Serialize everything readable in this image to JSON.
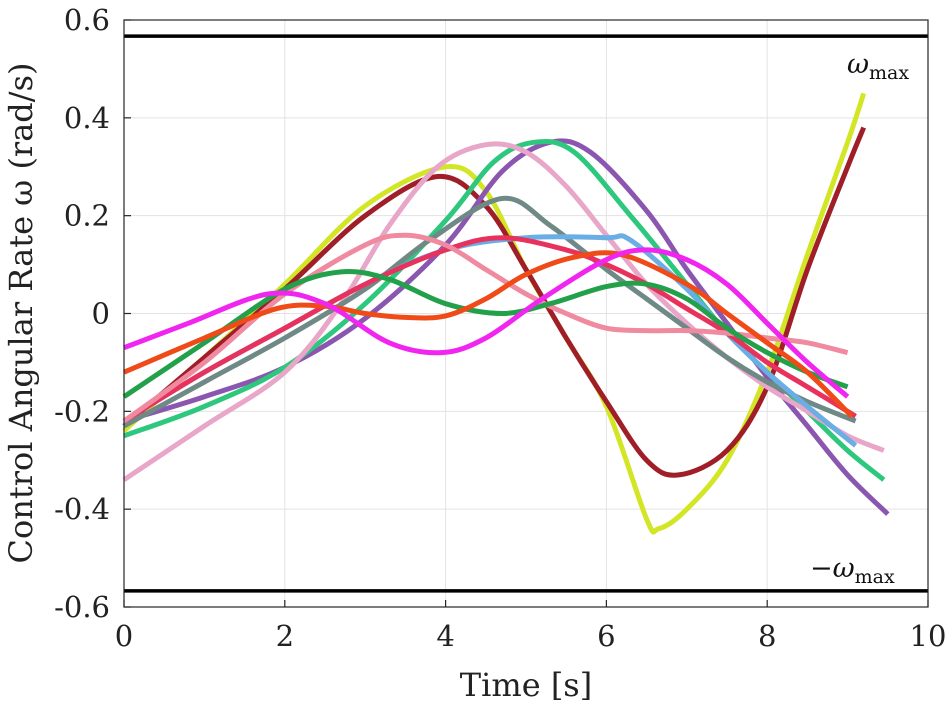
{
  "chart_data": {
    "type": "line",
    "title": "",
    "xlabel": "Time [s]",
    "ylabel": "Control Angular Rate ω (rad/s)",
    "xlim": [
      0,
      10
    ],
    "ylim": [
      -0.6,
      0.6
    ],
    "grid": true,
    "xticks": [
      0,
      2,
      4,
      6,
      8,
      10
    ],
    "xtick_labels": [
      "0",
      "2",
      "4",
      "6",
      "8",
      "10"
    ],
    "yticks": [
      0.6,
      0.4,
      0.2,
      0,
      -0.2,
      -0.4,
      -0.6
    ],
    "ytick_labels": [
      "0.6",
      "0.4",
      "0.2",
      "0",
      "-0.2",
      "-0.4",
      "-0.6"
    ],
    "bounds": [
      {
        "name": "omega_max",
        "value": 0.567,
        "label_main": "ω",
        "label_sub": "max"
      },
      {
        "name": "neg_omega_max",
        "value": -0.567,
        "label_main": "−ω",
        "label_sub": "max"
      }
    ],
    "series": [
      {
        "name": "yellow-green",
        "color": "#d2e626",
        "points": [
          [
            0,
            -0.24
          ],
          [
            1,
            -0.09
          ],
          [
            2,
            0.06
          ],
          [
            3,
            0.22
          ],
          [
            4,
            0.3
          ],
          [
            4.5,
            0.25
          ],
          [
            5,
            0.09
          ],
          [
            5.5,
            -0.05
          ],
          [
            6,
            -0.19
          ],
          [
            6.5,
            -0.42
          ],
          [
            6.65,
            -0.44
          ],
          [
            7,
            -0.4
          ],
          [
            7.5,
            -0.3
          ],
          [
            8,
            -0.12
          ],
          [
            8.5,
            0.12
          ],
          [
            9,
            0.35
          ],
          [
            9.2,
            0.45
          ]
        ]
      },
      {
        "name": "dark-red",
        "color": "#a01e28",
        "points": [
          [
            0,
            -0.23
          ],
          [
            1,
            -0.09
          ],
          [
            2,
            0.05
          ],
          [
            3,
            0.2
          ],
          [
            3.9,
            0.28
          ],
          [
            4.5,
            0.22
          ],
          [
            5,
            0.09
          ],
          [
            5.5,
            -0.05
          ],
          [
            6,
            -0.18
          ],
          [
            6.5,
            -0.3
          ],
          [
            6.9,
            -0.33
          ],
          [
            7.5,
            -0.28
          ],
          [
            8,
            -0.15
          ],
          [
            8.5,
            0.09
          ],
          [
            9,
            0.3
          ],
          [
            9.2,
            0.38
          ]
        ]
      },
      {
        "name": "purple",
        "color": "#8a56b0",
        "points": [
          [
            0,
            -0.22
          ],
          [
            1,
            -0.17
          ],
          [
            2,
            -0.11
          ],
          [
            3,
            -0.01
          ],
          [
            4,
            0.14
          ],
          [
            4.7,
            0.29
          ],
          [
            5.3,
            0.35
          ],
          [
            5.8,
            0.33
          ],
          [
            6.5,
            0.21
          ],
          [
            7,
            0.09
          ],
          [
            7.5,
            -0.02
          ],
          [
            8,
            -0.13
          ],
          [
            8.5,
            -0.23
          ],
          [
            9,
            -0.33
          ],
          [
            9.5,
            -0.41
          ]
        ]
      },
      {
        "name": "green",
        "color": "#2ec77e",
        "points": [
          [
            0,
            -0.25
          ],
          [
            1,
            -0.19
          ],
          [
            2,
            -0.11
          ],
          [
            3,
            0.02
          ],
          [
            4,
            0.19
          ],
          [
            4.6,
            0.31
          ],
          [
            5.1,
            0.35
          ],
          [
            5.6,
            0.33
          ],
          [
            6.3,
            0.2
          ],
          [
            7,
            0.06
          ],
          [
            7.5,
            -0.04
          ],
          [
            8,
            -0.12
          ],
          [
            8.5,
            -0.2
          ],
          [
            9,
            -0.28
          ],
          [
            9.45,
            -0.34
          ]
        ]
      },
      {
        "name": "pink",
        "color": "#e8a6c8",
        "points": [
          [
            0,
            -0.34
          ],
          [
            1,
            -0.23
          ],
          [
            2,
            -0.12
          ],
          [
            2.7,
            0.02
          ],
          [
            3.3,
            0.18
          ],
          [
            3.9,
            0.3
          ],
          [
            4.5,
            0.345
          ],
          [
            5,
            0.33
          ],
          [
            5.5,
            0.26
          ],
          [
            6,
            0.16
          ],
          [
            6.5,
            0.06
          ],
          [
            7,
            -0.02
          ],
          [
            7.5,
            -0.09
          ],
          [
            8,
            -0.15
          ],
          [
            8.5,
            -0.2
          ],
          [
            9,
            -0.25
          ],
          [
            9.45,
            -0.28
          ]
        ]
      },
      {
        "name": "gray-green",
        "color": "#6f8a86",
        "points": [
          [
            0,
            -0.23
          ],
          [
            1,
            -0.14
          ],
          [
            2,
            -0.05
          ],
          [
            3,
            0.05
          ],
          [
            3.8,
            0.15
          ],
          [
            4.7,
            0.235
          ],
          [
            5.3,
            0.18
          ],
          [
            6,
            0.09
          ],
          [
            6.5,
            0.03
          ],
          [
            7,
            -0.03
          ],
          [
            7.5,
            -0.09
          ],
          [
            8,
            -0.14
          ],
          [
            8.5,
            -0.18
          ],
          [
            9.1,
            -0.22
          ]
        ]
      },
      {
        "name": "light-blue",
        "color": "#6aaee6",
        "points": [
          [
            0,
            -0.22
          ],
          [
            1,
            -0.12
          ],
          [
            2,
            -0.03
          ],
          [
            3,
            0.06
          ],
          [
            4,
            0.13
          ],
          [
            5,
            0.155
          ],
          [
            6,
            0.155
          ],
          [
            6.3,
            0.15
          ],
          [
            7,
            0.05
          ],
          [
            7.5,
            -0.04
          ],
          [
            8,
            -0.12
          ],
          [
            8.5,
            -0.19
          ],
          [
            9.1,
            -0.27
          ]
        ]
      },
      {
        "name": "crimson",
        "color": "#e8325e",
        "points": [
          [
            0,
            -0.22
          ],
          [
            1,
            -0.12
          ],
          [
            2,
            -0.03
          ],
          [
            3,
            0.06
          ],
          [
            4,
            0.13
          ],
          [
            4.7,
            0.155
          ],
          [
            5.5,
            0.13
          ],
          [
            6,
            0.1
          ],
          [
            6.5,
            0.06
          ],
          [
            7,
            0.01
          ],
          [
            7.5,
            -0.04
          ],
          [
            8,
            -0.1
          ],
          [
            8.5,
            -0.15
          ],
          [
            9.1,
            -0.21
          ]
        ]
      },
      {
        "name": "salmon-pink",
        "color": "#f08aa0",
        "points": [
          [
            0,
            -0.22
          ],
          [
            1,
            -0.1
          ],
          [
            2,
            0.04
          ],
          [
            3,
            0.14
          ],
          [
            3.5,
            0.16
          ],
          [
            4,
            0.14
          ],
          [
            4.5,
            0.09
          ],
          [
            5,
            0.04
          ],
          [
            5.5,
            0.0
          ],
          [
            6,
            -0.03
          ],
          [
            6.5,
            -0.035
          ],
          [
            7,
            -0.035
          ],
          [
            7.5,
            -0.04
          ],
          [
            8,
            -0.05
          ],
          [
            8.5,
            -0.06
          ],
          [
            9,
            -0.08
          ]
        ]
      },
      {
        "name": "dark-green",
        "color": "#22a04a",
        "points": [
          [
            0,
            -0.17
          ],
          [
            1,
            -0.06
          ],
          [
            2,
            0.05
          ],
          [
            2.7,
            0.085
          ],
          [
            3.3,
            0.07
          ],
          [
            4,
            0.02
          ],
          [
            4.7,
            0.0
          ],
          [
            5.3,
            0.02
          ],
          [
            6,
            0.055
          ],
          [
            6.5,
            0.06
          ],
          [
            7,
            0.03
          ],
          [
            7.5,
            -0.03
          ],
          [
            8,
            -0.08
          ],
          [
            8.5,
            -0.12
          ],
          [
            9,
            -0.15
          ]
        ]
      },
      {
        "name": "orange-red",
        "color": "#f04a18",
        "points": [
          [
            0,
            -0.12
          ],
          [
            1,
            -0.05
          ],
          [
            1.9,
            0.01
          ],
          [
            2.5,
            0.015
          ],
          [
            3,
            0.0
          ],
          [
            3.5,
            -0.008
          ],
          [
            4,
            -0.005
          ],
          [
            4.5,
            0.03
          ],
          [
            5,
            0.08
          ],
          [
            5.6,
            0.115
          ],
          [
            6.2,
            0.12
          ],
          [
            7,
            0.06
          ],
          [
            7.5,
            0.0
          ],
          [
            8,
            -0.06
          ],
          [
            8.5,
            -0.12
          ],
          [
            9.05,
            -0.21
          ]
        ]
      },
      {
        "name": "magenta",
        "color": "#f026f0",
        "points": [
          [
            0,
            -0.07
          ],
          [
            0.8,
            -0.02
          ],
          [
            1.8,
            0.04
          ],
          [
            2.5,
            0.02
          ],
          [
            3.3,
            -0.06
          ],
          [
            3.95,
            -0.08
          ],
          [
            4.5,
            -0.05
          ],
          [
            5.2,
            0.03
          ],
          [
            6.0,
            0.11
          ],
          [
            6.5,
            0.13
          ],
          [
            7,
            0.11
          ],
          [
            7.5,
            0.06
          ],
          [
            8,
            -0.02
          ],
          [
            8.5,
            -0.1
          ],
          [
            9,
            -0.17
          ]
        ]
      }
    ]
  }
}
